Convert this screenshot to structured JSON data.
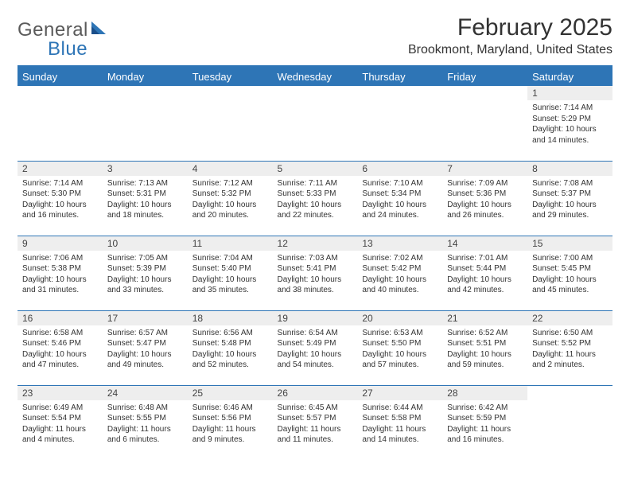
{
  "logo": {
    "word1": "General",
    "word2": "Blue",
    "sail_color": "#2e75b6"
  },
  "title": "February 2025",
  "location": "Brookmont, Maryland, United States",
  "header_color": "#2e75b6",
  "daynum_bg": "#eeeeee",
  "text_color": "#333333",
  "font_family": "Arial",
  "day_headers": [
    "Sunday",
    "Monday",
    "Tuesday",
    "Wednesday",
    "Thursday",
    "Friday",
    "Saturday"
  ],
  "weeks": [
    [
      null,
      null,
      null,
      null,
      null,
      null,
      {
        "n": "1",
        "sr": "Sunrise: 7:14 AM",
        "ss": "Sunset: 5:29 PM",
        "dl": "Daylight: 10 hours and 14 minutes."
      }
    ],
    [
      {
        "n": "2",
        "sr": "Sunrise: 7:14 AM",
        "ss": "Sunset: 5:30 PM",
        "dl": "Daylight: 10 hours and 16 minutes."
      },
      {
        "n": "3",
        "sr": "Sunrise: 7:13 AM",
        "ss": "Sunset: 5:31 PM",
        "dl": "Daylight: 10 hours and 18 minutes."
      },
      {
        "n": "4",
        "sr": "Sunrise: 7:12 AM",
        "ss": "Sunset: 5:32 PM",
        "dl": "Daylight: 10 hours and 20 minutes."
      },
      {
        "n": "5",
        "sr": "Sunrise: 7:11 AM",
        "ss": "Sunset: 5:33 PM",
        "dl": "Daylight: 10 hours and 22 minutes."
      },
      {
        "n": "6",
        "sr": "Sunrise: 7:10 AM",
        "ss": "Sunset: 5:34 PM",
        "dl": "Daylight: 10 hours and 24 minutes."
      },
      {
        "n": "7",
        "sr": "Sunrise: 7:09 AM",
        "ss": "Sunset: 5:36 PM",
        "dl": "Daylight: 10 hours and 26 minutes."
      },
      {
        "n": "8",
        "sr": "Sunrise: 7:08 AM",
        "ss": "Sunset: 5:37 PM",
        "dl": "Daylight: 10 hours and 29 minutes."
      }
    ],
    [
      {
        "n": "9",
        "sr": "Sunrise: 7:06 AM",
        "ss": "Sunset: 5:38 PM",
        "dl": "Daylight: 10 hours and 31 minutes."
      },
      {
        "n": "10",
        "sr": "Sunrise: 7:05 AM",
        "ss": "Sunset: 5:39 PM",
        "dl": "Daylight: 10 hours and 33 minutes."
      },
      {
        "n": "11",
        "sr": "Sunrise: 7:04 AM",
        "ss": "Sunset: 5:40 PM",
        "dl": "Daylight: 10 hours and 35 minutes."
      },
      {
        "n": "12",
        "sr": "Sunrise: 7:03 AM",
        "ss": "Sunset: 5:41 PM",
        "dl": "Daylight: 10 hours and 38 minutes."
      },
      {
        "n": "13",
        "sr": "Sunrise: 7:02 AM",
        "ss": "Sunset: 5:42 PM",
        "dl": "Daylight: 10 hours and 40 minutes."
      },
      {
        "n": "14",
        "sr": "Sunrise: 7:01 AM",
        "ss": "Sunset: 5:44 PM",
        "dl": "Daylight: 10 hours and 42 minutes."
      },
      {
        "n": "15",
        "sr": "Sunrise: 7:00 AM",
        "ss": "Sunset: 5:45 PM",
        "dl": "Daylight: 10 hours and 45 minutes."
      }
    ],
    [
      {
        "n": "16",
        "sr": "Sunrise: 6:58 AM",
        "ss": "Sunset: 5:46 PM",
        "dl": "Daylight: 10 hours and 47 minutes."
      },
      {
        "n": "17",
        "sr": "Sunrise: 6:57 AM",
        "ss": "Sunset: 5:47 PM",
        "dl": "Daylight: 10 hours and 49 minutes."
      },
      {
        "n": "18",
        "sr": "Sunrise: 6:56 AM",
        "ss": "Sunset: 5:48 PM",
        "dl": "Daylight: 10 hours and 52 minutes."
      },
      {
        "n": "19",
        "sr": "Sunrise: 6:54 AM",
        "ss": "Sunset: 5:49 PM",
        "dl": "Daylight: 10 hours and 54 minutes."
      },
      {
        "n": "20",
        "sr": "Sunrise: 6:53 AM",
        "ss": "Sunset: 5:50 PM",
        "dl": "Daylight: 10 hours and 57 minutes."
      },
      {
        "n": "21",
        "sr": "Sunrise: 6:52 AM",
        "ss": "Sunset: 5:51 PM",
        "dl": "Daylight: 10 hours and 59 minutes."
      },
      {
        "n": "22",
        "sr": "Sunrise: 6:50 AM",
        "ss": "Sunset: 5:52 PM",
        "dl": "Daylight: 11 hours and 2 minutes."
      }
    ],
    [
      {
        "n": "23",
        "sr": "Sunrise: 6:49 AM",
        "ss": "Sunset: 5:54 PM",
        "dl": "Daylight: 11 hours and 4 minutes."
      },
      {
        "n": "24",
        "sr": "Sunrise: 6:48 AM",
        "ss": "Sunset: 5:55 PM",
        "dl": "Daylight: 11 hours and 6 minutes."
      },
      {
        "n": "25",
        "sr": "Sunrise: 6:46 AM",
        "ss": "Sunset: 5:56 PM",
        "dl": "Daylight: 11 hours and 9 minutes."
      },
      {
        "n": "26",
        "sr": "Sunrise: 6:45 AM",
        "ss": "Sunset: 5:57 PM",
        "dl": "Daylight: 11 hours and 11 minutes."
      },
      {
        "n": "27",
        "sr": "Sunrise: 6:44 AM",
        "ss": "Sunset: 5:58 PM",
        "dl": "Daylight: 11 hours and 14 minutes."
      },
      {
        "n": "28",
        "sr": "Sunrise: 6:42 AM",
        "ss": "Sunset: 5:59 PM",
        "dl": "Daylight: 11 hours and 16 minutes."
      },
      null
    ]
  ]
}
